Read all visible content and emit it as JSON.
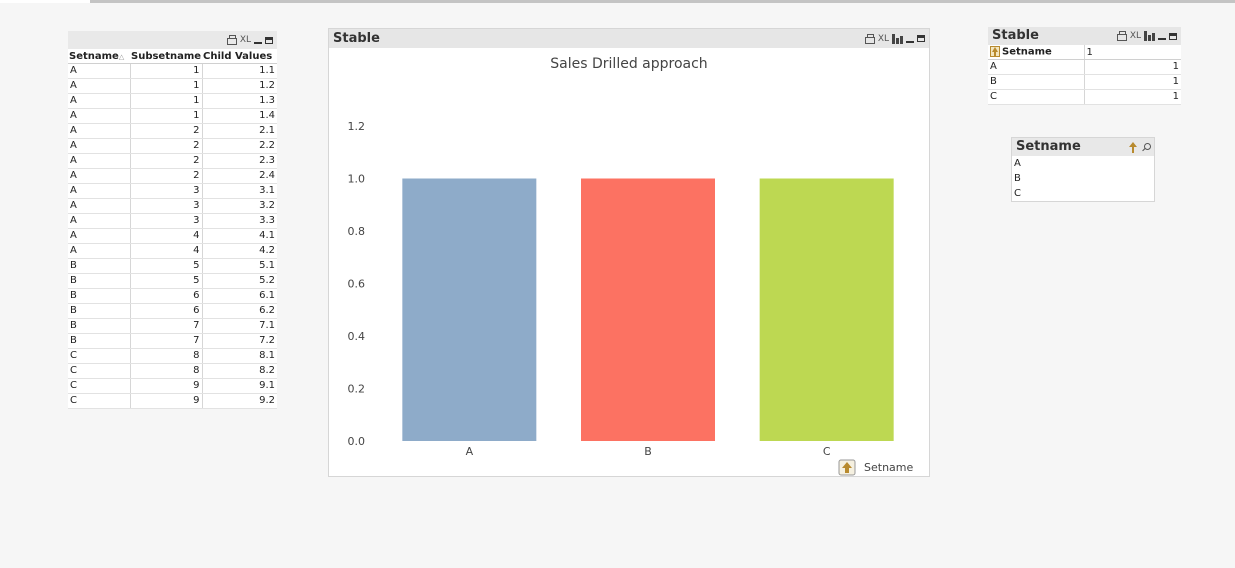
{
  "table1": {
    "caption_icons": [
      "print-icon",
      "xl-icon",
      "minimize-icon",
      "maximize-icon"
    ],
    "xl_label": "XL",
    "columns": [
      "Setname",
      "Subsetname",
      "Child Values"
    ],
    "rows": [
      [
        "A",
        "1",
        "1.1"
      ],
      [
        "A",
        "1",
        "1.2"
      ],
      [
        "A",
        "1",
        "1.3"
      ],
      [
        "A",
        "1",
        "1.4"
      ],
      [
        "A",
        "2",
        "2.1"
      ],
      [
        "A",
        "2",
        "2.2"
      ],
      [
        "A",
        "2",
        "2.3"
      ],
      [
        "A",
        "2",
        "2.4"
      ],
      [
        "A",
        "3",
        "3.1"
      ],
      [
        "A",
        "3",
        "3.2"
      ],
      [
        "A",
        "3",
        "3.3"
      ],
      [
        "A",
        "4",
        "4.1"
      ],
      [
        "A",
        "4",
        "4.2"
      ],
      [
        "B",
        "5",
        "5.1"
      ],
      [
        "B",
        "5",
        "5.2"
      ],
      [
        "B",
        "6",
        "6.1"
      ],
      [
        "B",
        "6",
        "6.2"
      ],
      [
        "B",
        "7",
        "7.1"
      ],
      [
        "B",
        "7",
        "7.2"
      ],
      [
        "C",
        "8",
        "8.1"
      ],
      [
        "C",
        "8",
        "8.2"
      ],
      [
        "C",
        "9",
        "9.1"
      ],
      [
        "C",
        "9",
        "9.2"
      ]
    ]
  },
  "chart_box": {
    "caption": "Stable",
    "xl_label": "XL",
    "dimension_label": "Setname"
  },
  "chart_data": {
    "type": "bar",
    "title": "Sales Drilled approach",
    "categories": [
      "A",
      "B",
      "C"
    ],
    "values": [
      1.0,
      1.0,
      1.0
    ],
    "colors": [
      "#8eabc9",
      "#fc7262",
      "#bdd852"
    ],
    "ylim": [
      0,
      1.2
    ],
    "yticks": [
      "0.0",
      "0.2",
      "0.4",
      "0.6",
      "0.8",
      "1.0",
      "1.2"
    ],
    "xlabel": "Setname",
    "ylabel": "",
    "grid": false
  },
  "stable2": {
    "caption": "Stable",
    "xl_label": "XL",
    "header": [
      "Setname",
      "1"
    ],
    "rows": [
      [
        "A",
        "1"
      ],
      [
        "B",
        "1"
      ],
      [
        "C",
        "1"
      ]
    ]
  },
  "listbox": {
    "title": "Setname",
    "items": [
      "A",
      "B",
      "C"
    ]
  }
}
